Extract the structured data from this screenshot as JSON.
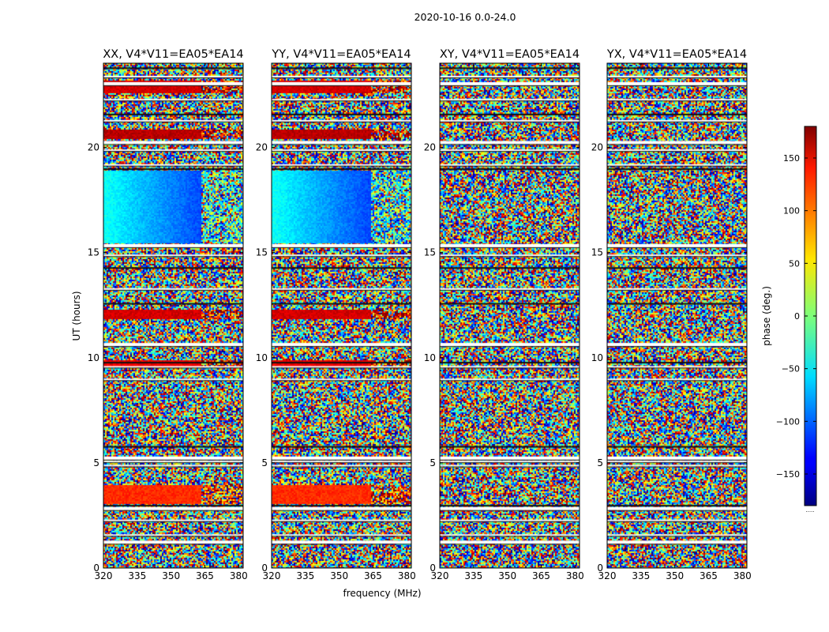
{
  "figure": {
    "suptitle": "2020-10-16 0.0-24.0",
    "xlabel": "frequency (MHz)",
    "ylabel": "UT (hours)"
  },
  "chart_data": {
    "type": "heatmap",
    "title": "2020-10-16 0.0-24.0",
    "xlabel": "frequency (MHz)",
    "ylabel": "UT (hours)",
    "xlim": [
      320,
      382
    ],
    "ylim": [
      0,
      24
    ],
    "xticks": [
      320,
      335,
      350,
      365,
      380
    ],
    "yticks": [
      0,
      5,
      10,
      15,
      20
    ],
    "colorbar": {
      "label": "phase (deg.)",
      "range": [
        -180,
        180
      ],
      "ticks": [
        150,
        100,
        50,
        0,
        -50,
        -100,
        -150
      ],
      "tick_labels": [
        "150",
        "100",
        "50",
        "0",
        "−50",
        "−100",
        "−150"
      ],
      "colormap": "jet",
      "footnote": "....."
    },
    "panels": [
      {
        "title": "XX, V4*V11=EA05*EA14",
        "polarization": "XX"
      },
      {
        "title": "YY, V4*V11=EA05*EA14",
        "polarization": "YY"
      },
      {
        "title": "XY, V4*V11=EA05*EA14",
        "polarization": "XY"
      },
      {
        "title": "YX, V4*V11=EA05*EA14",
        "polarization": "YX"
      }
    ],
    "coherent_bands": [
      {
        "ut": [
          22.6,
          23.2
        ],
        "phase_deg": 150,
        "panels": [
          "XX",
          "YY"
        ]
      },
      {
        "ut": [
          20.4,
          20.9
        ],
        "phase_deg": 160,
        "panels": [
          "XX",
          "YY"
        ]
      },
      {
        "ut": [
          15.5,
          18.9
        ],
        "phase_deg": -40,
        "panels": [
          "XX",
          "YY"
        ]
      },
      {
        "ut": [
          11.9,
          12.3
        ],
        "phase_deg": 150,
        "panels": [
          "XX",
          "YY"
        ]
      },
      {
        "ut": [
          9.6,
          9.9
        ],
        "phase_deg": 140,
        "panels": [
          "XX",
          "YY"
        ]
      },
      {
        "ut": [
          3.1,
          4.0
        ],
        "phase_deg": 120,
        "panels": [
          "XX",
          "YY"
        ]
      }
    ],
    "flagged_gaps_ut": [
      1.3,
      1.6,
      2.3,
      2.9,
      4.9,
      5.1,
      5.3,
      9.0,
      9.6,
      10.7,
      13.3,
      14.9,
      15.4,
      19.2,
      19.9,
      20.3,
      21.3,
      22.3,
      23.1,
      23.4
    ]
  }
}
